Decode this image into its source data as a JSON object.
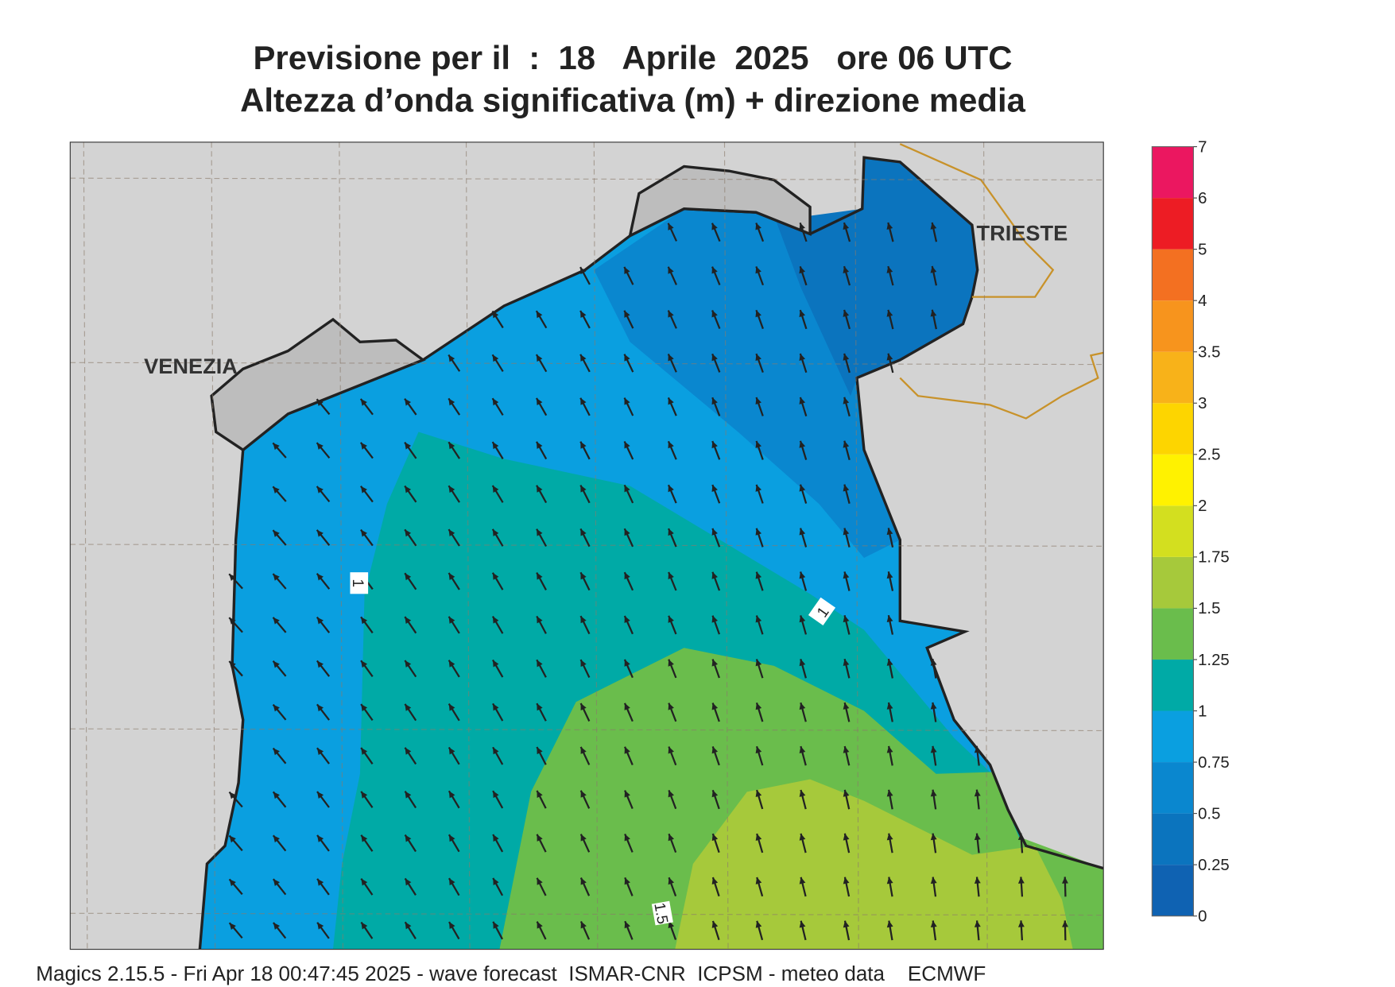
{
  "header": {
    "title": "Previsione per il  :  18   Aprile  2025   ore 06 UTC",
    "subtitle": "Altezza d’onda significativa (m) + direzione media"
  },
  "places": [
    "VENEZIA",
    "TRIESTE"
  ],
  "contour_labels": [
    1,
    1,
    1.5
  ],
  "colorbar": {
    "levels": [
      0,
      0.25,
      0.5,
      0.75,
      1,
      1.25,
      1.5,
      1.75,
      2,
      2.5,
      3,
      3.5,
      4,
      5,
      6,
      7
    ],
    "colors": [
      "#0f62b2",
      "#0b74be",
      "#0a87cf",
      "#0a9fe0",
      "#00aaa6",
      "#6abd4c",
      "#a6c93b",
      "#d3df1f",
      "#fff200",
      "#fdd500",
      "#f8b219",
      "#f7941d",
      "#f37021",
      "#ed1c24",
      "#eb1760"
    ]
  },
  "footer": "Magics 2.15.5 - Fri Apr 18 00:47:45 2025 - wave forecast  ISMAR-CNR  ICPSM - meteo data    ECMWF"
}
